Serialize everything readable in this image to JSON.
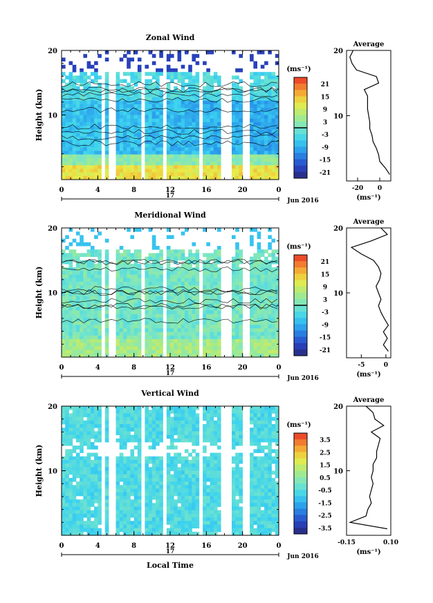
{
  "chart_data": [
    {
      "type": "heatmap",
      "title": "Zonal Wind",
      "ylabel": "Height (km)",
      "ylim": [
        0,
        20
      ],
      "yticks": [
        "20",
        "10"
      ],
      "xlim": [
        0,
        24
      ],
      "xticks": [
        "0",
        "4",
        "8",
        "12",
        "16",
        "20",
        "0"
      ],
      "day_label": "17",
      "month_label": "Jun 2016",
      "colorbar": {
        "unit": "(ms⁻¹)",
        "ticks": [
          "21",
          "15",
          "9",
          "3",
          "-3",
          "-9",
          "-15",
          "-21"
        ],
        "contour_line_at": "0"
      },
      "observation_gaps_local_time": [
        [
          4.2,
          4.7
        ],
        [
          5.0,
          5.8
        ],
        [
          8.5,
          9.0
        ],
        [
          11.0,
          11.5
        ],
        [
          15.0,
          15.5
        ],
        [
          17.5,
          18.5
        ],
        [
          20.0,
          20.5
        ]
      ],
      "average": {
        "title": "Average",
        "xlabel": "(ms⁻¹)",
        "xticks": [
          "-20",
          "0"
        ],
        "yticks": [
          "20",
          "10"
        ],
        "xlim": [
          -30,
          10
        ],
        "profile": [
          [
            1,
            9
          ],
          [
            2,
            5
          ],
          [
            3,
            0
          ],
          [
            4,
            -1
          ],
          [
            5,
            -3
          ],
          [
            6,
            -6
          ],
          [
            7,
            -7
          ],
          [
            8,
            -9
          ],
          [
            9,
            -9
          ],
          [
            10,
            -10
          ],
          [
            11,
            -11
          ],
          [
            12,
            -11
          ],
          [
            13,
            -11
          ],
          [
            14,
            -14
          ],
          [
            15,
            -1
          ],
          [
            16,
            -3
          ],
          [
            17,
            -21
          ],
          [
            18,
            -25
          ],
          [
            19,
            -27
          ],
          [
            20,
            -24
          ]
        ]
      }
    },
    {
      "type": "heatmap",
      "title": "Meridional Wind",
      "ylabel": "Height (km)",
      "ylim": [
        0,
        20
      ],
      "yticks": [
        "20",
        "10"
      ],
      "xlim": [
        0,
        24
      ],
      "xticks": [
        "0",
        "4",
        "8",
        "12",
        "16",
        "20",
        "0"
      ],
      "day_label": "17",
      "month_label": "Jun 2016",
      "colorbar": {
        "unit": "(ms⁻¹)",
        "ticks": [
          "21",
          "15",
          "9",
          "3",
          "-3",
          "-9",
          "-15",
          "-21"
        ],
        "contour_line_at": "0"
      },
      "average": {
        "title": "Average",
        "xlabel": "(ms⁻¹)",
        "xticks": [
          "-5",
          "0"
        ],
        "yticks": [
          "20",
          "10"
        ],
        "xlim": [
          -8,
          1
        ],
        "profile": [
          [
            1,
            0.5
          ],
          [
            2,
            -0.5
          ],
          [
            3,
            0.3
          ],
          [
            4,
            -0.5
          ],
          [
            5,
            0.5
          ],
          [
            6,
            -0.3
          ],
          [
            7,
            -1
          ],
          [
            8,
            -1.5
          ],
          [
            9,
            -1
          ],
          [
            10,
            -1.5
          ],
          [
            11,
            -2
          ],
          [
            12,
            -1.3
          ],
          [
            13,
            -1
          ],
          [
            14,
            -1.5
          ],
          [
            15,
            -2.5
          ],
          [
            16,
            -5
          ],
          [
            17,
            -7
          ],
          [
            18,
            -3
          ],
          [
            19,
            0.3
          ],
          [
            20,
            -1
          ]
        ]
      }
    },
    {
      "type": "heatmap",
      "title": "Vertical Wind",
      "ylabel": "Height (km)",
      "xlabel": "Local Time",
      "ylim": [
        0,
        20
      ],
      "yticks": [
        "20",
        "10"
      ],
      "xlim": [
        0,
        24
      ],
      "xticks": [
        "0",
        "4",
        "8",
        "12",
        "16",
        "20",
        "0"
      ],
      "day_label": "17",
      "month_label": "Jun 2016",
      "colorbar": {
        "unit": "(ms⁻¹)",
        "ticks": [
          "3.5",
          "2.5",
          "1.5",
          "0.5",
          "-0.5",
          "-1.5",
          "-2.5",
          "-3.5"
        ]
      },
      "average": {
        "title": "Average",
        "xlabel": "(ms⁻¹)",
        "xticks": [
          "-0.15",
          "0.10"
        ],
        "yticks": [
          "20",
          "10"
        ],
        "xlim": [
          -0.15,
          0.1
        ],
        "profile": [
          [
            1,
            0.08
          ],
          [
            2,
            -0.13
          ],
          [
            3,
            -0.04
          ],
          [
            4,
            -0.03
          ],
          [
            5,
            -0.01
          ],
          [
            6,
            -0.02
          ],
          [
            7,
            -0.01
          ],
          [
            8,
            0.0
          ],
          [
            9,
            -0.01
          ],
          [
            10,
            0.0
          ],
          [
            11,
            0.0
          ],
          [
            12,
            0.02
          ],
          [
            13,
            0.02
          ],
          [
            14,
            0.03
          ],
          [
            15,
            0.04
          ],
          [
            16,
            -0.01
          ],
          [
            17,
            0.06
          ],
          [
            18,
            0.01
          ],
          [
            19,
            0.0
          ],
          [
            20,
            -0.04
          ]
        ]
      }
    }
  ]
}
